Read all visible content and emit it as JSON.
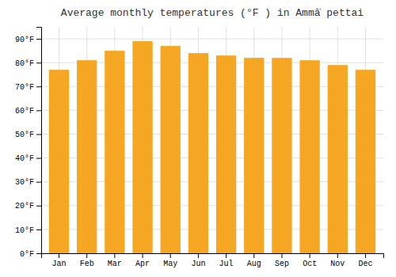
{
  "chart_data": {
    "type": "bar",
    "title": "Average monthly temperatures (°F ) in Ammā̇ pettai",
    "categories": [
      "Jan",
      "Feb",
      "Mar",
      "Apr",
      "May",
      "Jun",
      "Jul",
      "Aug",
      "Sep",
      "Oct",
      "Nov",
      "Dec"
    ],
    "values": [
      77,
      81,
      85,
      89,
      87,
      84,
      83,
      82,
      82,
      81,
      79,
      77
    ],
    "color": "#F5A623",
    "ylim": [
      0,
      95
    ],
    "yticks": [
      {
        "value": 0,
        "label": "0°F"
      },
      {
        "value": 10,
        "label": "10°F"
      },
      {
        "value": 20,
        "label": "20°F"
      },
      {
        "value": 30,
        "label": "30°F"
      },
      {
        "value": 40,
        "label": "40°F"
      },
      {
        "value": 50,
        "label": "50°F"
      },
      {
        "value": 60,
        "label": "60°F"
      },
      {
        "value": 70,
        "label": "70°F"
      },
      {
        "value": 80,
        "label": "80°F"
      },
      {
        "value": 90,
        "label": "90°F"
      }
    ],
    "grid": true
  }
}
